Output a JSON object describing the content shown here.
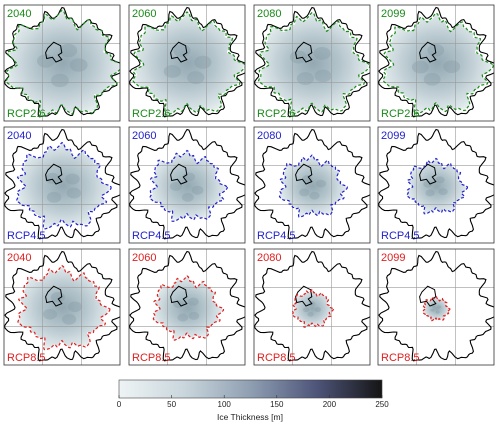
{
  "colors": {
    "rcp26": "#1a8a1a",
    "rcp45": "#2222cc",
    "rcp85": "#e02020",
    "outline": "#000000",
    "grid": "#9a9a9a",
    "ice_low": "#eef3f4",
    "ice_mid": "#a9bac3",
    "ice_high": "#2f3550"
  },
  "years": [
    "2040",
    "2060",
    "2080",
    "2099"
  ],
  "scenarios": [
    {
      "label": "RCP2.6",
      "color_key": "rcp26",
      "extent": [
        0.96,
        0.93,
        0.92,
        0.91
      ]
    },
    {
      "label": "RCP4.5",
      "color_key": "rcp45",
      "extent": [
        0.78,
        0.64,
        0.56,
        0.5
      ]
    },
    {
      "label": "RCP8.5",
      "color_key": "rcp85",
      "extent": [
        0.76,
        0.58,
        0.34,
        0.22
      ]
    }
  ],
  "colorbar": {
    "label": "Ice Thickness [m]",
    "ticks": [
      "0",
      "50",
      "100",
      "150",
      "200",
      "250"
    ],
    "min": 0,
    "max": 250,
    "colormap": "bone-reversed"
  }
}
